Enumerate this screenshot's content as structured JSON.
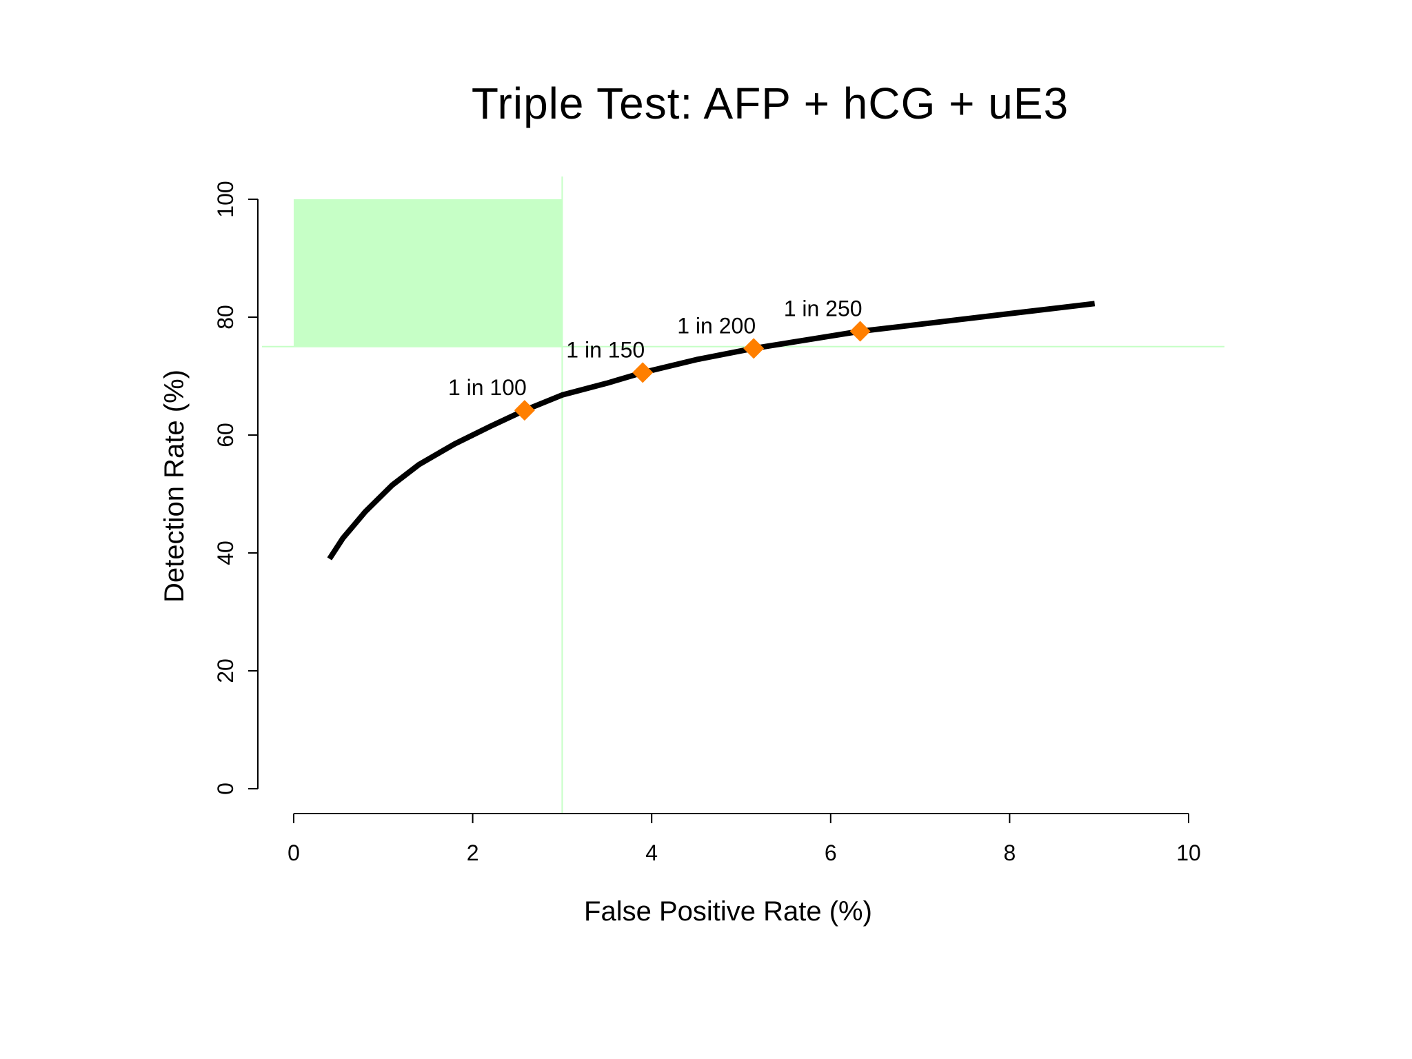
{
  "chart_data": {
    "type": "line",
    "title": "Triple Test: AFP + hCG + uE3",
    "xlabel": "False Positive Rate (%)",
    "ylabel": "Detection Rate (%)",
    "xlim": [
      0,
      10
    ],
    "ylim": [
      0,
      100
    ],
    "xticks": [
      "0",
      "2",
      "4",
      "6",
      "8",
      "10"
    ],
    "yticks": [
      "0",
      "20",
      "40",
      "60",
      "80",
      "100"
    ],
    "grid": false,
    "legend": "none",
    "curve": {
      "x": [
        0.4,
        0.55,
        0.8,
        1.1,
        1.4,
        1.8,
        2.2,
        2.58,
        3.0,
        3.5,
        3.9,
        4.5,
        5.14,
        5.8,
        6.33,
        7.0,
        8.0,
        8.95
      ],
      "y": [
        39,
        42.5,
        47,
        51.5,
        55,
        58.5,
        61.5,
        64.2,
        66.8,
        68.8,
        70.6,
        72.8,
        74.7,
        76.3,
        77.6,
        78.8,
        80.6,
        82.3
      ],
      "color": "#000000"
    },
    "points": [
      {
        "label": "1 in 100",
        "x": 2.58,
        "y": 64.2
      },
      {
        "label": "1 in 150",
        "x": 3.9,
        "y": 70.6
      },
      {
        "label": "1 in 200",
        "x": 5.14,
        "y": 74.7
      },
      {
        "label": "1 in 250",
        "x": 6.33,
        "y": 77.6
      }
    ],
    "point_color": "#ff7f00",
    "target_region": {
      "x": [
        0,
        3
      ],
      "y": [
        75,
        100
      ],
      "color": "#c6ffc6"
    },
    "reference_lines": {
      "x": 3,
      "y": 75,
      "color": "#c6ffc6"
    }
  }
}
